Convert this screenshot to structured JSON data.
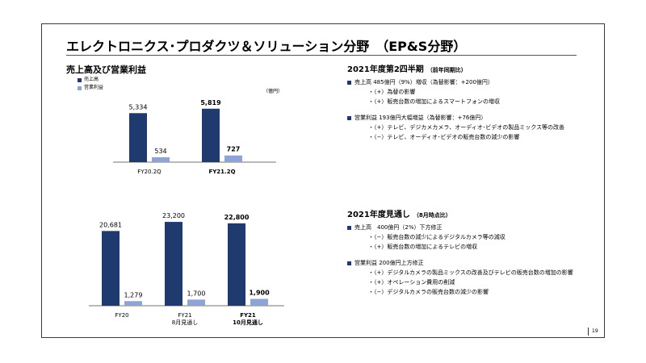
{
  "slide": {
    "title": "エレクトロニクス･プロダクツ＆ソリューション分野　（EP&S分野）",
    "subtitle": "売上高及び営業利益",
    "unit": "（億円）",
    "page_number": "19"
  },
  "legend": [
    {
      "label": "売上高",
      "color": "#1f3a6e"
    },
    {
      "label": "営業利益",
      "color": "#8fa3d4"
    }
  ],
  "chart_data": [
    {
      "type": "bar",
      "categories": [
        "FY20.2Q",
        "FY21.2Q"
      ],
      "series": [
        {
          "name": "売上高",
          "values": [
            5334,
            5819
          ]
        },
        {
          "name": "営業利益",
          "values": [
            534,
            727
          ]
        }
      ],
      "value_labels": [
        [
          "5,334",
          "5,819"
        ],
        [
          "534",
          "727"
        ]
      ],
      "bold_categories": [
        false,
        true
      ],
      "ylim": [
        0,
        6500
      ]
    },
    {
      "type": "bar",
      "categories": [
        "FY20",
        "FY21\n8月見通し",
        "FY21\n10月見通し"
      ],
      "series": [
        {
          "name": "売上高",
          "values": [
            20681,
            23200,
            22800
          ]
        },
        {
          "name": "営業利益",
          "values": [
            1279,
            1700,
            1900
          ]
        }
      ],
      "value_labels": [
        [
          "20,681",
          "23,200",
          "22,800"
        ],
        [
          "1,279",
          "1,700",
          "1,900"
        ]
      ],
      "bold_categories": [
        false,
        false,
        true
      ],
      "ylim": [
        0,
        25000
      ]
    }
  ],
  "panels": [
    {
      "title": "2021年度第2四半期",
      "note": "（前年同期比）",
      "blocks": [
        {
          "head": "売上高 485億円（9%）増収（為替影響：+200億円）",
          "items": [
            "・（+）為替の影響",
            "・（+）販売台数の増加によるスマートフォンの増収"
          ]
        },
        {
          "head": "営業利益 193億円大幅増益（為替影響：+76億円）",
          "items": [
            "・（+）テレビ、デジカメカメラ、オーディオ･ビデオの製品ミックス等の改善",
            "・（−）テレビ、オーディオ･ビデオの販売台数の減少の影響"
          ]
        }
      ]
    },
    {
      "title": "2021年度見通し",
      "note": "（8月時点比）",
      "blocks": [
        {
          "head": "売上高　400億円（2%）下方修正",
          "items": [
            "・（−）販売台数の減少によるデジタルカメラ等の減収",
            "・（+）販売台数の増加によるテレビの増収"
          ]
        },
        {
          "head": "営業利益 200億円上方修正",
          "items": [
            "・（+）デジタルカメラの製品ミックスの改善及びテレビの販売台数の増加の影響",
            "・（+）オペレーション費用の削減",
            "・（−）デジタルカメラの販売台数の減少の影響"
          ]
        }
      ]
    }
  ]
}
